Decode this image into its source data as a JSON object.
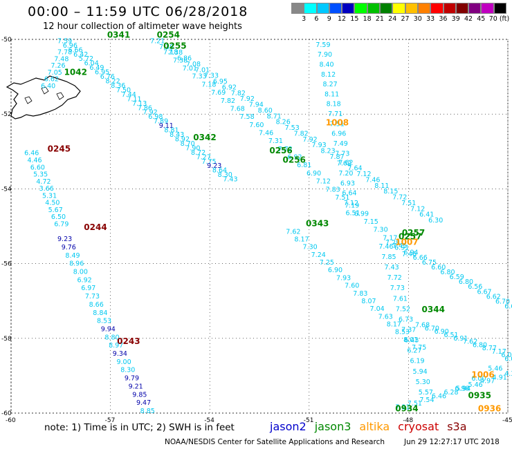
{
  "title": "00:00 – 11:59 UTC 06/28/2018",
  "subtitle": "12 hour collection of altimeter wave heights",
  "color_scale": {
    "labels": [
      "3",
      "6",
      "9",
      "12",
      "15",
      "18",
      "21",
      "24",
      "27",
      "30",
      "33",
      "36",
      "39",
      "42",
      "45",
      "70 (ft)"
    ],
    "colors": [
      "#888888",
      "#00ffff",
      "#00c8ff",
      "#0050ff",
      "#0000c0",
      "#00ff00",
      "#00c000",
      "#008000",
      "#ffff00",
      "#ffc000",
      "#ff8000",
      "#ff0000",
      "#c00000",
      "#800000",
      "#800080",
      "#c000c0",
      "#000000"
    ]
  },
  "note": "note: 1) Time is in UTC; 2) SWH is in feet",
  "legend": [
    {
      "label": "jason2",
      "color": "#0000cc"
    },
    {
      "label": "jason3",
      "color": "#008800"
    },
    {
      "label": "altika",
      "color": "#ff9900"
    },
    {
      "label": "cryosat",
      "color": "#cc0000"
    },
    {
      "label": "s3a",
      "color": "#880000"
    }
  ],
  "credit_left": "NOAA/NESDIS Center for Satellite Applications and Research",
  "credit_right": "Jun 29 12:27:17 UTC 2018",
  "chart_data": {
    "type": "scatter",
    "xlim": [
      -60,
      -45
    ],
    "ylim": [
      -60,
      -50
    ],
    "x_ticks": [
      "-60",
      "-57",
      "-54",
      "-51",
      "-48",
      "-45"
    ],
    "y_ticks": [
      "-50",
      "-52",
      "-54",
      "-56",
      "-58",
      "-60"
    ],
    "pass_labels": [
      {
        "text": "0341",
        "lon": -57.1,
        "lat": -49.95,
        "color": "#008800"
      },
      {
        "text": "0254",
        "lon": -55.6,
        "lat": -49.95,
        "color": "#008800"
      },
      {
        "text": "0255",
        "lon": -55.4,
        "lat": -50.25,
        "color": "#008800"
      },
      {
        "text": "1042",
        "lon": -58.4,
        "lat": -50.95,
        "color": "#008800"
      },
      {
        "text": "0342",
        "lon": -54.5,
        "lat": -52.7,
        "color": "#008800"
      },
      {
        "text": "1008",
        "lon": -50.5,
        "lat": -52.3,
        "color": "#ff9900"
      },
      {
        "text": "0256",
        "lon": -52.2,
        "lat": -53.05,
        "color": "#008800"
      },
      {
        "text": "0256",
        "lon": -51.8,
        "lat": -53.3,
        "color": "#008800"
      },
      {
        "text": "0245",
        "lon": -58.9,
        "lat": -53.0,
        "color": "#880000"
      },
      {
        "text": "0244",
        "lon": -57.8,
        "lat": -55.1,
        "color": "#880000"
      },
      {
        "text": "0343",
        "lon": -51.1,
        "lat": -55.0,
        "color": "#008800"
      },
      {
        "text": "0257",
        "lon": -48.2,
        "lat": -55.25,
        "color": "#008800"
      },
      {
        "text": "0257",
        "lon": -48.3,
        "lat": -55.35,
        "color": "#008800"
      },
      {
        "text": "1007",
        "lon": -48.4,
        "lat": -55.5,
        "color": "#ff9900"
      },
      {
        "text": "0344",
        "lon": -47.6,
        "lat": -57.3,
        "color": "#008800"
      },
      {
        "text": "0243",
        "lon": -56.8,
        "lat": -58.15,
        "color": "#880000"
      },
      {
        "text": "1006",
        "lon": -46.1,
        "lat": -59.05,
        "color": "#ff9900"
      },
      {
        "text": "0935",
        "lon": -46.2,
        "lat": -59.6,
        "color": "#008800"
      },
      {
        "text": "0934",
        "lon": -48.4,
        "lat": -59.95,
        "color": "#008800"
      },
      {
        "text": "0936",
        "lon": -45.9,
        "lat": -59.95,
        "color": "#ff9900"
      }
    ],
    "series": [
      {
        "name": "0341",
        "start": [
          -58.6,
          -50.1
        ],
        "end": [
          -53.6,
          -53.8
        ],
        "values": [
          "7.59",
          "6.96",
          "6.66",
          "6.42",
          "5.72",
          "6.04",
          "6.49",
          "6.95",
          "6.76",
          "8.22",
          "8.36",
          "7.50",
          "7.44",
          "7.11",
          "7.13",
          "7.86",
          "7.92",
          "6.98",
          "7.89",
          "9.11",
          "8.81",
          "8.43",
          "8.92",
          "8.70",
          "7.90",
          "8.72",
          "7.27",
          "7.75",
          "9.23",
          "8.64",
          "8.30",
          "7.43"
        ],
        "dark": [
          19,
          28
        ]
      },
      {
        "name": "0254",
        "start": [
          -55.8,
          -50.1
        ],
        "end": [
          -47.4,
          -54.9
        ],
        "values": [
          "7.21",
          "7.30",
          "7.38",
          "6.86",
          "7.08",
          "7.01",
          "7.33",
          "6.95",
          "6.92",
          "7.82",
          "7.92",
          "7.94",
          "8.60",
          "8.71",
          "8.26",
          "7.53",
          "7.82",
          "7.92",
          "7.93",
          "8.23",
          "7.87",
          "7.62",
          "7.64",
          "7.12",
          "7.46",
          "8.11",
          "8.15",
          "7.72",
          "7.51",
          "7.12",
          "6.41",
          "6.30"
        ],
        "dark": []
      },
      {
        "name": "0255",
        "start": [
          -55.4,
          -50.4
        ],
        "end": [
          -48.2,
          -55.8
        ],
        "values": [
          "7.18",
          "7.38",
          "7.01",
          "7.33",
          "7.18",
          "7.69",
          "7.82",
          "7.68",
          "7.58",
          "7.60",
          "7.46",
          "7.31",
          "7.72",
          "6.92",
          "6.81",
          "6.90",
          "7.12",
          "7.83",
          "7.51",
          "7.19",
          "6.99",
          "7.15",
          "7.30",
          "7.17",
          "7.45",
          "7.46"
        ],
        "dark": []
      },
      {
        "name": "1042",
        "start": [
          -59.1,
          -51.3
        ],
        "end": [
          -58.6,
          -50.4
        ],
        "values": [
          "6.40",
          "6.62",
          "7.05",
          "7.26",
          "7.48",
          "7.78"
        ],
        "dark": []
      },
      {
        "name": "1008",
        "start": [
          -50.8,
          -50.2
        ],
        "end": [
          -49.9,
          -54.7
        ],
        "values": [
          "7.59",
          "7.90",
          "8.40",
          "8.12",
          "8.27",
          "8.11",
          "8.18",
          "7.71",
          "7.51",
          "6.96",
          "7.49",
          "7.73",
          "7.62",
          "7.20",
          "6.93",
          "6.64",
          "7.12",
          "6.51"
        ],
        "dark": []
      },
      {
        "name": "0245",
        "start": [
          -59.6,
          -53.1
        ],
        "end": [
          -58.7,
          -55.0
        ],
        "values": [
          "6.46",
          "4.46",
          "6.60",
          "5.35",
          "4.72",
          "3.66",
          "5.31",
          "4.50",
          "5.67",
          "6.50",
          "6.79"
        ],
        "dark": []
      },
      {
        "name": "0244",
        "start": [
          -58.6,
          -55.4
        ],
        "end": [
          -56.1,
          -60.0
        ],
        "values": [
          "9.23",
          "9.76",
          "8.49",
          "8.96",
          "8.00",
          "6.92",
          "6.97",
          "7.73",
          "8.66",
          "8.84",
          "8.53",
          "9.94",
          "8.80",
          "8.97",
          "9.34",
          "9.00",
          "8.30",
          "9.79",
          "9.21",
          "9.85",
          "9.47",
          "8.85"
        ],
        "dark": [
          0,
          1,
          11,
          14,
          17,
          18,
          19,
          20
        ]
      },
      {
        "name": "0343",
        "start": [
          -51.7,
          -55.2
        ],
        "end": [
          -47.9,
          -58.3
        ],
        "values": [
          "7.62",
          "8.17",
          "7.30",
          "7.24",
          "7.25",
          "6.90",
          "7.93",
          "7.60",
          "7.83",
          "8.07",
          "7.04",
          "7.63",
          "8.17",
          "8.53",
          "8.01",
          "7.75"
        ],
        "dark": []
      },
      {
        "name": "1007",
        "start": [
          -48.9,
          -55.6
        ],
        "end": [
          -47.7,
          -59.5
        ],
        "values": [
          "7.46",
          "7.85",
          "7.43",
          "7.72",
          "7.73",
          "7.61",
          "7.52",
          "6.73",
          "7.37",
          "6.43",
          "6.27",
          "6.19",
          "5.94",
          "5.30",
          "5.57"
        ],
        "dark": []
      },
      {
        "name": "0344",
        "start": [
          -47.8,
          -57.7
        ],
        "end": [
          -45.2,
          -58.5
        ],
        "values": [
          "7.68",
          "6.70",
          "6.90",
          "6.51",
          "6.91",
          "7.62",
          "6.80",
          "8.77",
          "7.17",
          "6.03"
        ],
        "dark": []
      },
      {
        "name": "0257",
        "start": [
          -48.7,
          -55.5
        ],
        "end": [
          -45.1,
          -57.2
        ],
        "values": [
          "7.28",
          "6.91",
          "6.94",
          "6.66",
          "6.75",
          "6.60",
          "6.80",
          "6.59",
          "6.80",
          "6.56",
          "6.67",
          "6.62",
          "6.70",
          "6.67"
        ],
        "dark": []
      },
      {
        "name": "0935",
        "start": [
          -48.4,
          -59.9
        ],
        "end": [
          -45.1,
          -59.0
        ],
        "values": [
          "7.21",
          "7.51",
          "7.54",
          "6.46",
          "6.28",
          "5.94",
          "5.46",
          "4.97",
          "4.91",
          "4.31"
        ],
        "dark": []
      },
      {
        "name": "1006",
        "start": [
          -46.6,
          -59.4
        ],
        "end": [
          -45.1,
          -58.6
        ],
        "values": [
          "6.98",
          "6.00",
          "5.46",
          "6.03"
        ],
        "dark": []
      }
    ]
  }
}
